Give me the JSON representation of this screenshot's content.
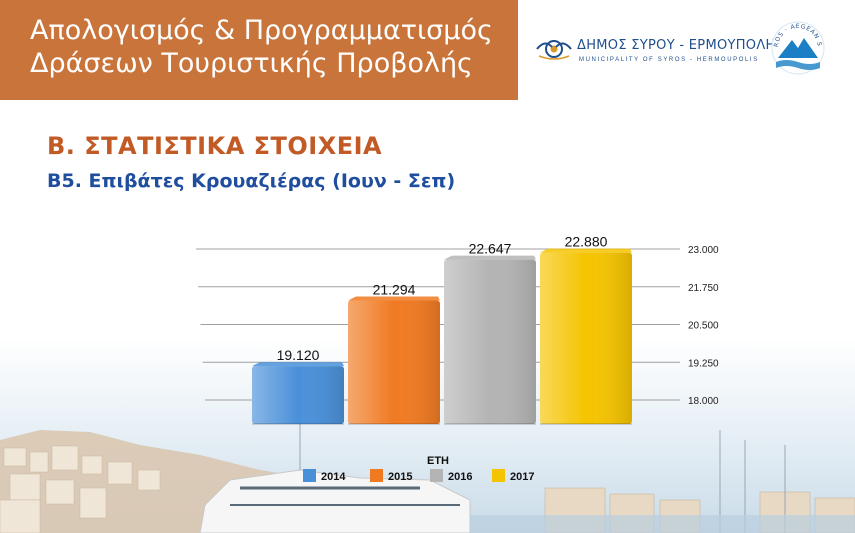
{
  "header": {
    "title_line1": "Απολογισμός & Προγραμματισμός",
    "title_line2": "Δράσεων Τουριστικής Προβολής"
  },
  "logos": {
    "municipality_name": "ΔΗΜΟΣ ΣΥΡΟΥ - ΕΡΜΟΥΠΟΛΗΣ",
    "municipality_sub": "MUNICIPALITY OF SYROS - HERMOUPOLIS",
    "seal_text": "SYROS · AEGEAN SEA",
    "brand_color": "#1e4f8c"
  },
  "section_title": "Β. ΣΤΑΤΙΣΤΙΚΑ ΣΤΟΙΧΕΙΑ",
  "subtitle": "Β5. Επιβάτες Κρουαζιέρας (Ιουν - Σεπ)",
  "chart_data": {
    "type": "bar",
    "style": "3d",
    "categories": [
      "2014",
      "2015",
      "2016",
      "2017"
    ],
    "values": [
      19120,
      21294,
      22647,
      22880
    ],
    "data_labels": [
      "19.120",
      "21.294",
      "22.647",
      "22.880"
    ],
    "colors": [
      "#4a90d9",
      "#f07a22",
      "#b4b4b4",
      "#f5c400"
    ],
    "ylim": [
      18000,
      23000
    ],
    "yticks": [
      18000,
      19250,
      20500,
      21750,
      23000
    ],
    "ytick_labels": [
      "18.000",
      "19.250",
      "20.500",
      "21.750",
      "23.000"
    ],
    "y_axis_position": "right",
    "grid": true,
    "legend_title": "ΕΤΗ",
    "legend_entries": [
      "2014",
      "2015",
      "2016",
      "2017"
    ],
    "legend_position": "bottom"
  }
}
